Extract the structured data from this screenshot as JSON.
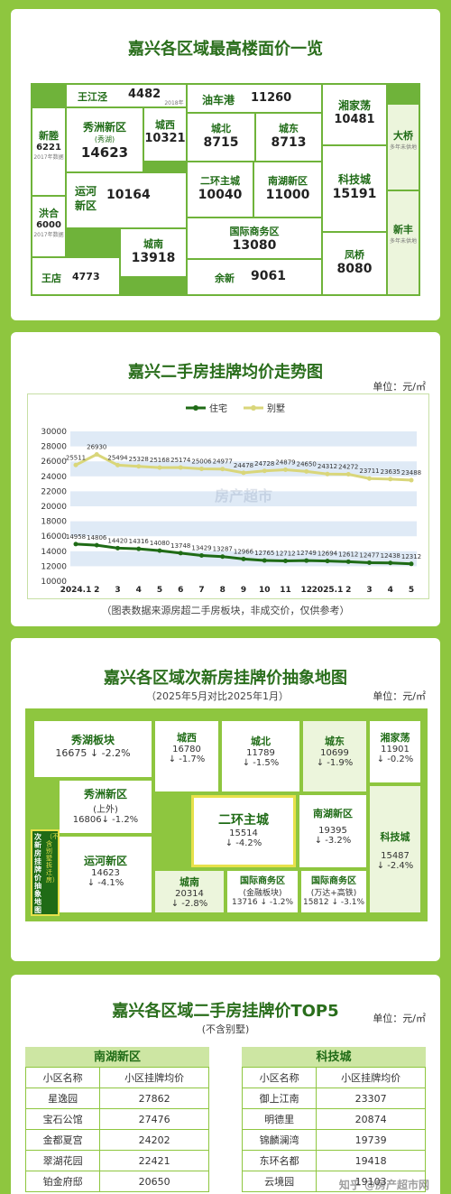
{
  "map1": {
    "title": "嘉兴各区域最高楼面价一览",
    "districts": [
      {
        "name": "王江泾",
        "price": "4482",
        "note": "2018年数据"
      },
      {
        "name": "油车港",
        "price": "11260"
      },
      {
        "name": "湘家荡",
        "price": "10481"
      },
      {
        "name": "新塍",
        "price": "6221",
        "note": "2017年数据"
      },
      {
        "name": "秀洲新区",
        "sub": "(秀湖)",
        "price": "14623"
      },
      {
        "name": "城西",
        "price": "10321"
      },
      {
        "name": "城北",
        "price": "8715"
      },
      {
        "name": "城东",
        "price": "8713"
      },
      {
        "name": "大桥",
        "note": "多年未供地"
      },
      {
        "name": "二环主城",
        "price": "10040"
      },
      {
        "name": "南湖新区",
        "price": "11000"
      },
      {
        "name": "科技城",
        "price": "15191"
      },
      {
        "name": "洪合",
        "price": "6000",
        "note": "2017年数据"
      },
      {
        "name": "运河新区",
        "price": "10164"
      },
      {
        "name": "城南",
        "price": "13918"
      },
      {
        "name": "国际商务区",
        "price": "13080"
      },
      {
        "name": "新丰",
        "note": "多年未供地"
      },
      {
        "name": "王店",
        "price": "4773"
      },
      {
        "name": "余新",
        "price": "9061"
      },
      {
        "name": "凤桥",
        "price": "8080"
      }
    ],
    "unit_mark": "元"
  },
  "trend": {
    "title": "嘉兴二手房挂牌均价走势图",
    "unit": "单位：元/㎡",
    "footnote": "（图表数据来源房超二手房板块，非成交价，仅供参考）",
    "watermark": "房产超市"
  },
  "chart_data": {
    "type": "line",
    "categories": [
      "2024.1",
      "2",
      "3",
      "4",
      "5",
      "6",
      "7",
      "8",
      "9",
      "10",
      "11",
      "12",
      "2025.1",
      "2",
      "3",
      "4",
      "5"
    ],
    "series": [
      {
        "name": "住宅",
        "color": "#1f6b16",
        "values": [
          14958,
          14806,
          14420,
          14316,
          14080,
          13748,
          13429,
          13287,
          12966,
          12765,
          12712,
          12749,
          12694,
          12612,
          12477,
          12438,
          12312
        ]
      },
      {
        "name": "别墅",
        "color": "#d9d67a",
        "values": [
          25511,
          26930,
          25494,
          25328,
          25168,
          25174,
          25006,
          24977,
          24478,
          24728,
          24879,
          24650,
          24312,
          24272,
          23711,
          23635,
          23488
        ]
      }
    ],
    "yticks": [
      "30000",
      "28000",
      "26000",
      "24000",
      "22000",
      "20000",
      "18000",
      "16000",
      "14000",
      "12000",
      "10000"
    ],
    "ylim": [
      10000,
      30000
    ],
    "legend_position": "top-center",
    "grid": true
  },
  "map2": {
    "title": "嘉兴各区域次新房挂牌价抽象地图",
    "subtitle": "（2025年5月对比2025年1月）",
    "unit": "单位：元/㎡",
    "side_label": "次新房挂牌价抽象地图",
    "side_note": "（不含别墅拆迁房）",
    "districts": [
      {
        "name": "秀湖板块",
        "price": "16675",
        "change": "↓ -2.2%"
      },
      {
        "name": "城西",
        "price": "16780",
        "change": "↓ -1.7%"
      },
      {
        "name": "城北",
        "price": "11789",
        "change": "↓ -1.5%"
      },
      {
        "name": "城东",
        "price": "10699",
        "change": "↓ -1.9%"
      },
      {
        "name": "湘家荡",
        "price": "11901",
        "change": "↓ -0.2%"
      },
      {
        "name": "秀洲新区",
        "sub": "(上外)",
        "price": "16806",
        "change": "↓ -1.2%"
      },
      {
        "name": "二环主城",
        "price": "15514",
        "change": "↓ -4.2%"
      },
      {
        "name": "南湖新区",
        "price": "19395",
        "change": "↓ -3.2%"
      },
      {
        "name": "科技城",
        "price": "15487",
        "change": "↓ -2.4%"
      },
      {
        "name": "运河新区",
        "price": "14623",
        "change": "↓ -4.1%"
      },
      {
        "name": "城南",
        "price": "20314",
        "change": "↓ -2.8%"
      },
      {
        "name": "国际商务区",
        "sub": "(金融板块)",
        "price": "13716",
        "change": "↓ -1.2%"
      },
      {
        "name": "国际商务区",
        "sub": "(万达+高铁)",
        "price": "15812",
        "change": "↓ -3.1%"
      }
    ]
  },
  "top5": {
    "title": "嘉兴各区域二手房挂牌价TOP5",
    "subtitle": "(不含别墅)",
    "unit": "单位：元/㎡",
    "col1": "小区名称",
    "col2": "小区挂牌均价",
    "left": {
      "name": "南湖新区",
      "rows": [
        [
          "星逸园",
          "27862"
        ],
        [
          "宝石公馆",
          "27476"
        ],
        [
          "金都夏宫",
          "24202"
        ],
        [
          "翠湖花园",
          "22421"
        ],
        [
          "铂金府邸",
          "20650"
        ]
      ]
    },
    "right": {
      "name": "科技城",
      "rows": [
        [
          "御上江南",
          "23307"
        ],
        [
          "明德里",
          "20874"
        ],
        [
          "锦麟澜湾",
          "19739"
        ],
        [
          "东环名都",
          "19418"
        ],
        [
          "云境园",
          "19103"
        ]
      ]
    },
    "credit": "知乎 @房产超市网"
  },
  "colors": {
    "bg": "#8ec63f",
    "green_dark": "#1f6b16",
    "villa": "#d9d67a"
  }
}
